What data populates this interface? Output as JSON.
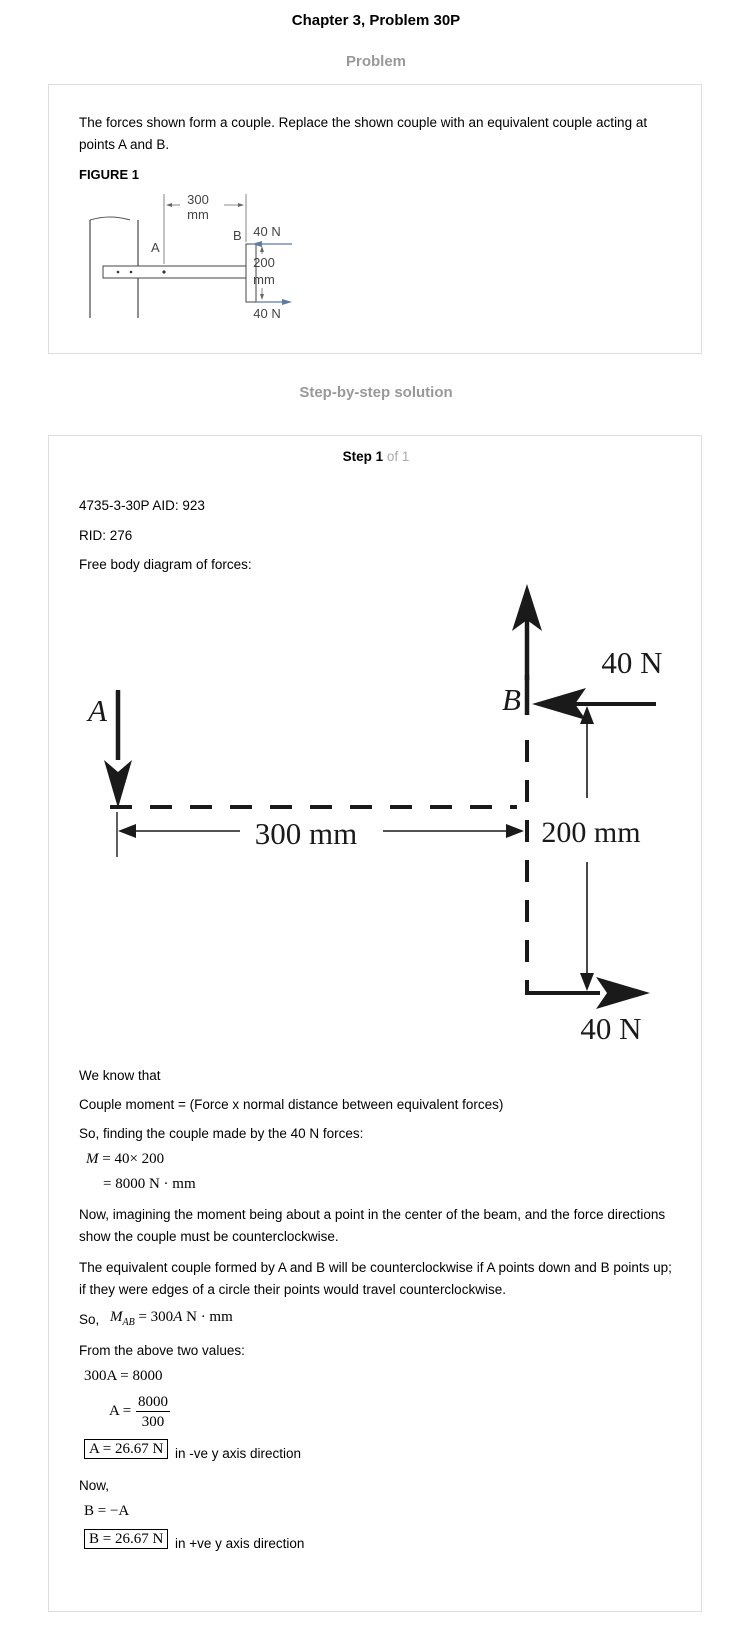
{
  "header": {
    "title": "Chapter 3, Problem 30P"
  },
  "problem": {
    "heading": "Problem",
    "statement": "The forces shown form a couple. Replace the shown couple with an equivalent couple acting at points A and B.",
    "figure_label": "FIGURE 1",
    "figure": {
      "dim_top_value": "300",
      "dim_top_unit": "mm",
      "label_a": "A",
      "label_b": "B",
      "force_top": "40 N",
      "dim_side_value": "200",
      "dim_side_unit": "mm",
      "force_bottom": "40 N"
    }
  },
  "solution": {
    "heading": "Step-by-step solution",
    "step_word": "Step 1",
    "step_of": "of 1",
    "ids_line1": "4735-3-30P AID: 923",
    "ids_line2": "RID: 276",
    "fbd_intro": "Free body diagram of forces:",
    "fbd": {
      "label_a": "A",
      "label_b": "B",
      "force_top": "40 N",
      "dim_side": "200 mm",
      "dim_bottom": "300 mm",
      "force_bottom": "40 N"
    },
    "we_know": "We know that",
    "couple_def": "Couple moment = (Force x normal distance between equivalent forces)",
    "finding": "So, finding the couple made by the 40 N forces:",
    "eq_m1_lhs": "M",
    "eq_m1_rhs": "= 40× 200",
    "eq_m2": "= 8000 N · mm",
    "imagining": "Now, imagining the moment being about a point in the center of the beam, and the force directions show the couple must be counterclockwise.",
    "equivalent": "The equivalent couple formed by A and B will be counterclockwise if A points down and B points up; if they were edges of a circle their points would travel counterclockwise.",
    "so_prefix": "So,",
    "mab_m": "M",
    "mab_sub": "AB",
    "mab_rhs_pre": "= 300",
    "mab_rhs_var": "A",
    "mab_rhs_post": " N · mm",
    "from_above": "From the above two values:",
    "eq_a1": "300A = 8000",
    "eq_a2_lhs": "A =",
    "eq_a2_num": "8000",
    "eq_a2_den": "300",
    "ans_a": "A = 26.67 N",
    "ans_a_dir": "in -ve y axis direction",
    "now": "Now,",
    "eq_b1": "B = −A",
    "ans_b": "B = 26.67 N",
    "ans_b_dir": "in +ve y axis direction"
  }
}
